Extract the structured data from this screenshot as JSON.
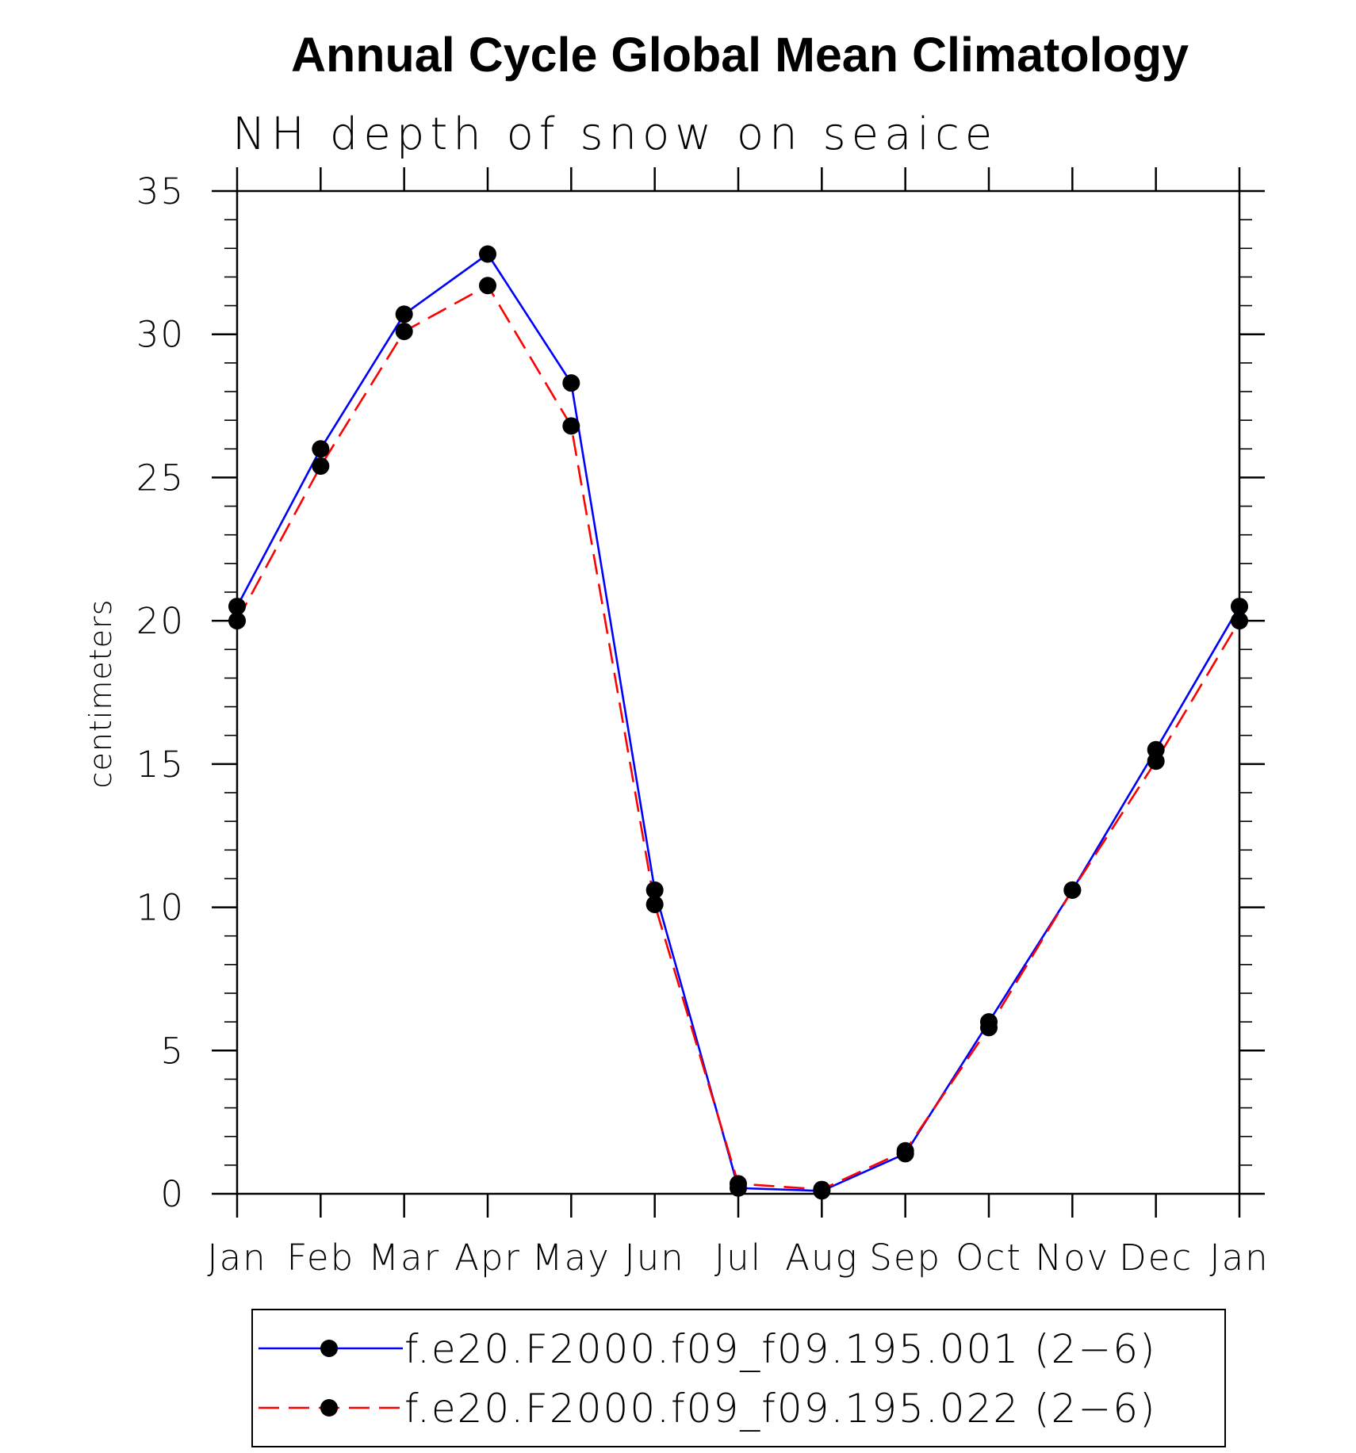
{
  "chart_data": {
    "type": "line",
    "title": "Annual Cycle Global Mean Climatology",
    "subtitle": "NH depth of snow on seaice",
    "xlabel": "",
    "ylabel": "centimeters",
    "categories": [
      "Jan",
      "Feb",
      "Mar",
      "Apr",
      "May",
      "Jun",
      "Jul",
      "Aug",
      "Sep",
      "Oct",
      "Nov",
      "Dec",
      "Jan"
    ],
    "ylim": [
      0,
      35
    ],
    "yticks": [
      0,
      5,
      10,
      15,
      20,
      25,
      30,
      35
    ],
    "grid": false,
    "legend_position": "bottom",
    "series": [
      {
        "name": "f.e20.F2000.f09_f09.195.001 (2−6)",
        "color": "#0000ff",
        "line_style": "solid",
        "marker": "filled-circle",
        "values": [
          20.5,
          26.0,
          30.7,
          32.8,
          28.3,
          10.6,
          0.2,
          0.1,
          1.4,
          6.0,
          10.6,
          15.5,
          20.5
        ]
      },
      {
        "name": "f.e20.F2000.f09_f09.195.022 (2−6)",
        "color": "#ff0000",
        "line_style": "dashed",
        "marker": "filled-circle",
        "values": [
          20.0,
          25.4,
          30.1,
          31.7,
          26.8,
          10.1,
          0.35,
          0.15,
          1.5,
          5.8,
          10.6,
          15.1,
          20.0
        ]
      }
    ]
  }
}
